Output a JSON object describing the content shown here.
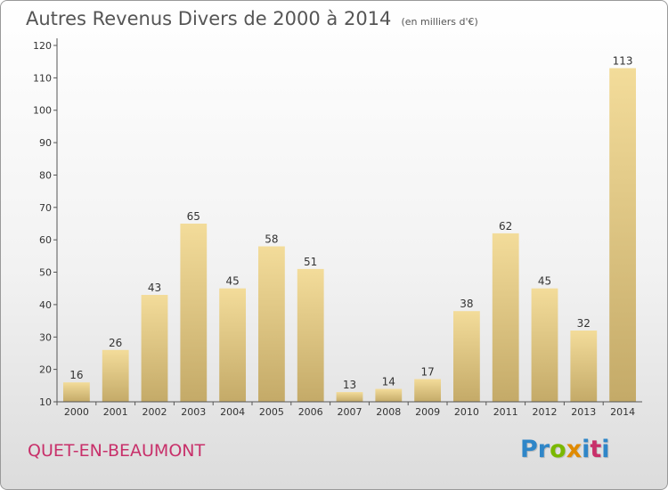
{
  "chart_data": {
    "type": "bar",
    "title": "Autres Revenus Divers de 2000 à 2014",
    "subtitle": "(en milliers d'€)",
    "xlabel": "",
    "ylabel": "",
    "categories": [
      "2000",
      "2001",
      "2002",
      "2003",
      "2004",
      "2005",
      "2006",
      "2007",
      "2008",
      "2009",
      "2010",
      "2011",
      "2012",
      "2013",
      "2014"
    ],
    "values": [
      16,
      26,
      43,
      65,
      45,
      58,
      51,
      13,
      14,
      17,
      38,
      62,
      45,
      32,
      113
    ],
    "ylim": [
      10,
      120
    ],
    "yticks": [
      10,
      20,
      30,
      40,
      50,
      60,
      70,
      80,
      90,
      100,
      110,
      120
    ],
    "grid": false,
    "legend": "none",
    "bar_color_light": "#f3dc9a",
    "bar_color_dark": "#c4aa68"
  },
  "footer": {
    "commune": "QUET-EN-BEAUMONT",
    "logo_letters": [
      {
        "char": "P",
        "color": "#2f86c8"
      },
      {
        "char": "r",
        "color": "#2f86c8"
      },
      {
        "char": "o",
        "color": "#7ab800"
      },
      {
        "char": "x",
        "color": "#e08a00"
      },
      {
        "char": "i",
        "color": "#2f86c8"
      },
      {
        "char": "t",
        "color": "#c8306a"
      },
      {
        "char": "i",
        "color": "#2f86c8"
      }
    ]
  }
}
